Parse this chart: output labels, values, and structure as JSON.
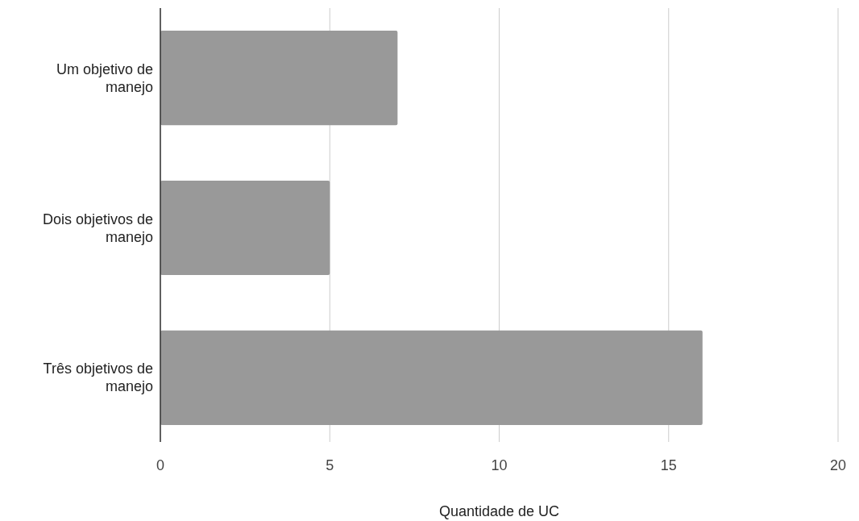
{
  "chart_data": {
    "type": "bar",
    "orientation": "horizontal",
    "categories": [
      "Um objetivo de manejo",
      "Dois objetivos de manejo",
      "Três objetivos de manejo"
    ],
    "values": [
      7,
      5,
      16
    ],
    "color": "#999999",
    "xlim": [
      0,
      20
    ],
    "xticks": [
      0,
      5,
      10,
      15,
      20
    ],
    "grid": "x",
    "xlabel": "Quantidade de UC"
  }
}
